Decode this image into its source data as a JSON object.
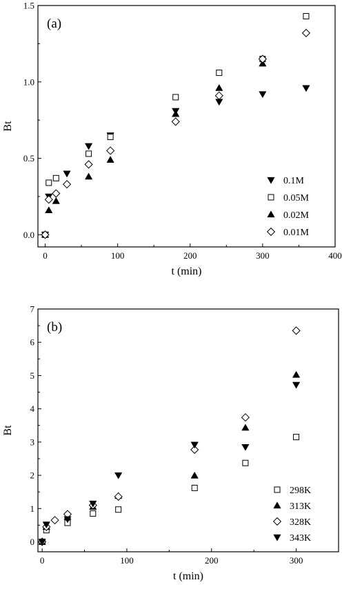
{
  "chart_data": [
    {
      "type": "scatter",
      "panel_label": "(a)",
      "xlabel": "t (min)",
      "ylabel": "Bt",
      "xlim": [
        -10,
        400
      ],
      "ylim": [
        -0.08,
        1.5
      ],
      "xticks": [
        0,
        100,
        200,
        300,
        400
      ],
      "yticks": [
        0.0,
        0.5,
        1.0,
        1.5
      ],
      "xtick_labels": [
        "0",
        "100",
        "200",
        "300",
        "400"
      ],
      "ytick_labels": [
        "0.0",
        "0.5",
        "1.0",
        "1.5"
      ],
      "legend_position": "bottom-right",
      "series": [
        {
          "name": "0.1M",
          "marker": "triangle-down-filled",
          "x": [
            0,
            5,
            30,
            60,
            90,
            180,
            240,
            300,
            360
          ],
          "y": [
            0.0,
            0.25,
            0.4,
            0.58,
            0.65,
            0.81,
            0.87,
            0.92,
            0.96
          ]
        },
        {
          "name": "0.05M",
          "marker": "square-open",
          "x": [
            0,
            5,
            15,
            60,
            90,
            180,
            240,
            300,
            360
          ],
          "y": [
            0.0,
            0.34,
            0.37,
            0.53,
            0.64,
            0.9,
            1.06,
            1.15,
            1.43
          ]
        },
        {
          "name": "0.02M",
          "marker": "triangle-up-filled",
          "x": [
            0,
            5,
            15,
            60,
            90,
            180,
            240,
            300
          ],
          "y": [
            0.0,
            0.16,
            0.22,
            0.38,
            0.49,
            0.79,
            0.96,
            1.12
          ]
        },
        {
          "name": "0.01M",
          "marker": "diamond-open",
          "x": [
            0,
            5,
            15,
            30,
            60,
            90,
            180,
            240,
            300,
            360
          ],
          "y": [
            0.0,
            0.23,
            0.27,
            0.33,
            0.46,
            0.55,
            0.74,
            0.91,
            1.15,
            1.32
          ]
        }
      ]
    },
    {
      "type": "scatter",
      "panel_label": "(b)",
      "xlabel": "t (min)",
      "ylabel": "Bt",
      "xlim": [
        -5,
        350
      ],
      "ylim": [
        -0.3,
        7
      ],
      "xticks": [
        0,
        100,
        200,
        300
      ],
      "yticks": [
        0,
        1,
        2,
        3,
        4,
        5,
        6,
        7
      ],
      "xtick_labels": [
        "0",
        "100",
        "200",
        "300"
      ],
      "ytick_labels": [
        "0",
        "1",
        "2",
        "3",
        "4",
        "5",
        "6",
        "7"
      ],
      "legend_position": "bottom-right",
      "series": [
        {
          "name": "298K",
          "marker": "square-open",
          "x": [
            0,
            5,
            30,
            60,
            90,
            180,
            240,
            300
          ],
          "y": [
            0.0,
            0.35,
            0.57,
            0.85,
            0.97,
            1.62,
            2.37,
            3.15
          ]
        },
        {
          "name": "313K",
          "marker": "triangle-up-filled",
          "x": [
            0,
            5,
            30,
            60,
            90,
            180,
            240,
            300
          ],
          "y": [
            0.0,
            0.45,
            0.75,
            1.05,
            1.38,
            1.99,
            3.43,
            5.02
          ]
        },
        {
          "name": "328K",
          "marker": "diamond-open",
          "x": [
            0,
            5,
            15,
            30,
            60,
            90,
            180,
            240,
            300
          ],
          "y": [
            0.0,
            0.45,
            0.65,
            0.83,
            1.1,
            1.36,
            2.77,
            3.74,
            6.35
          ]
        },
        {
          "name": "343K",
          "marker": "triangle-down-filled",
          "x": [
            0,
            5,
            30,
            60,
            90,
            180,
            240,
            300
          ],
          "y": [
            0.0,
            0.52,
            0.68,
            1.15,
            2.0,
            2.92,
            2.85,
            4.72
          ]
        }
      ]
    }
  ]
}
